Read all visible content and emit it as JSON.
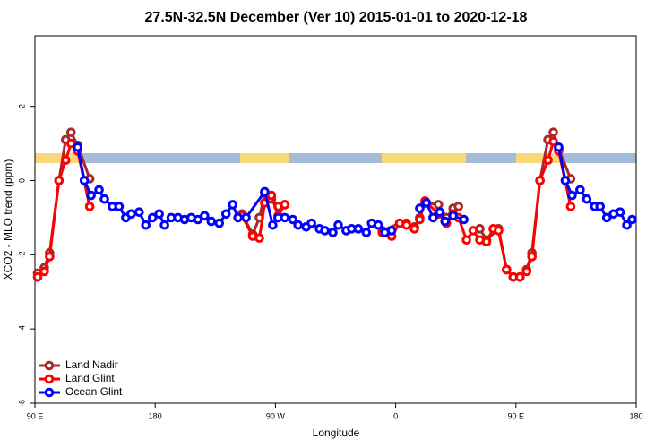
{
  "chart_data": {
    "type": "line",
    "title": "27.5N-32.5N December (Ver 10)   2015-01-01 to 2020-12-18",
    "xlabel": "Longitude",
    "ylabel": "XCO2 - MLO trend (ppm)",
    "xlim": [
      90,
      540
    ],
    "xticks": [
      {
        "value": 90,
        "label": "90 E"
      },
      180,
      {
        "value": 270,
        "label": "90 W"
      },
      0,
      {
        "value": 450,
        "label": "90 E"
      },
      {
        "value": 540,
        "label": "180"
      }
    ],
    "ylim": [
      -6,
      3.9
    ],
    "yticks": [
      -6,
      -4,
      -2,
      0,
      2
    ],
    "legend": "bottom-left",
    "series": [
      {
        "name": "Land Nadir",
        "color": "#a52a2a",
        "x": [
          92,
          97,
          101,
          108,
          113,
          117,
          122,
          131,
          null,
          245,
          253,
          258,
          262,
          267,
          272,
          277,
          null,
          350,
          363,
          368,
          374,
          378,
          382,
          392,
          398,
          403,
          407,
          null,
          423,
          428,
          437,
          443,
          448,
          453,
          458,
          462,
          468,
          474,
          478,
          482,
          491
        ],
        "values": [
          -2.5,
          -2.35,
          -1.95,
          0,
          1.1,
          1.3,
          0.95,
          0.05,
          null,
          -0.9,
          -1.45,
          -1.0,
          -0.35,
          -0.5,
          -0.7,
          -0.65,
          null,
          -1.35,
          -1.15,
          -1.15,
          -1.25,
          -1.0,
          -0.6,
          -0.65,
          -1.0,
          -0.75,
          -0.7,
          null,
          -1.3,
          -1.6,
          -1.3,
          -2.4,
          -2.6,
          -2.6,
          -2.4,
          -1.95,
          0,
          1.1,
          1.3,
          0.85,
          0.05
        ]
      },
      {
        "name": "Land Glint",
        "color": "#ff0000",
        "x": [
          92,
          97,
          101,
          108,
          113,
          117,
          122,
          131,
          null,
          245,
          253,
          258,
          262,
          267,
          272,
          277,
          null,
          350,
          357,
          363,
          368,
          374,
          378,
          382,
          392,
          398,
          403,
          407,
          413,
          418,
          423,
          428,
          433,
          437,
          443,
          448,
          453,
          458,
          462,
          468,
          474,
          478,
          482,
          491
        ],
        "values": [
          -2.6,
          -2.45,
          -2.05,
          0,
          0.55,
          1.0,
          0.8,
          -0.7,
          null,
          -0.95,
          -1.5,
          -1.55,
          -0.6,
          -0.4,
          -0.95,
          -0.65,
          null,
          -1.4,
          -1.5,
          -1.15,
          -1.2,
          -1.3,
          -1.05,
          -0.55,
          -0.9,
          -1.15,
          -0.9,
          -1.0,
          -1.6,
          -1.35,
          -1.6,
          -1.65,
          -1.3,
          -1.35,
          -2.4,
          -2.6,
          -2.6,
          -2.45,
          -2.05,
          0,
          0.55,
          1.05,
          0.8,
          -0.7
        ]
      },
      {
        "name": "Ocean Glint",
        "color": "#0000ff",
        "x": [
          122,
          127,
          132,
          138,
          142,
          148,
          153,
          158,
          162,
          168,
          173,
          178,
          183,
          187,
          192,
          197,
          202,
          207,
          212,
          217,
          222,
          228,
          233,
          238,
          242,
          248,
          262,
          268,
          272,
          277,
          283,
          287,
          293,
          297,
          303,
          307,
          313,
          317,
          323,
          327,
          332,
          338,
          342,
          347,
          352,
          357,
          null,
          378,
          383,
          388,
          393,
          397,
          403,
          411,
          null,
          482,
          487,
          492,
          498,
          503,
          509,
          513,
          518,
          523,
          528,
          533,
          537
        ],
        "values": [
          0.9,
          0,
          -0.4,
          -0.25,
          -0.5,
          -0.7,
          -0.7,
          -1.0,
          -0.9,
          -0.85,
          -1.2,
          -1.0,
          -0.9,
          -1.2,
          -1.0,
          -1.0,
          -1.05,
          -1.0,
          -1.05,
          -0.95,
          -1.1,
          -1.15,
          -0.9,
          -0.65,
          -1.0,
          -1.0,
          -0.3,
          -1.2,
          -1.0,
          -1.0,
          -1.05,
          -1.2,
          -1.25,
          -1.15,
          -1.3,
          -1.35,
          -1.4,
          -1.2,
          -1.35,
          -1.3,
          -1.3,
          -1.4,
          -1.15,
          -1.2,
          -1.4,
          -1.35,
          null,
          -0.75,
          -0.6,
          -1.0,
          -0.85,
          -1.1,
          -0.95,
          -1.05,
          null,
          0.9,
          0,
          -0.4,
          -0.25,
          -0.5,
          -0.7,
          -0.7,
          -1.0,
          -0.9,
          -0.85,
          -1.2,
          -1.05
        ]
      }
    ]
  }
}
